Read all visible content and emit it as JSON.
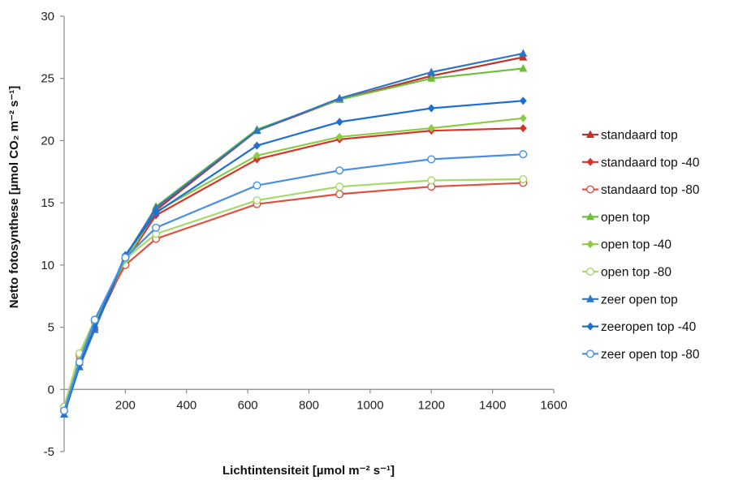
{
  "chart_data": {
    "type": "line",
    "xlabel": "Lichtintensiteit [µmol m⁻² s⁻¹]",
    "ylabel": "Netto fotosynthese [µmol CO₂ m⁻² s⁻¹]",
    "xlim": [
      0,
      1600
    ],
    "ylim": [
      -5,
      30
    ],
    "x_ticks": [
      200,
      400,
      600,
      800,
      1000,
      1200,
      1400,
      1600
    ],
    "y_ticks": [
      -5,
      0,
      5,
      10,
      15,
      20,
      25,
      30
    ],
    "x_tick_labels": [
      "200",
      "400",
      "600",
      "800",
      "1000",
      "1200",
      "1400",
      "1600"
    ],
    "y_tick_labels": [
      "-5",
      "0",
      "5",
      "10",
      "15",
      "20",
      "25",
      "30"
    ],
    "grid": false,
    "legend_position": "right",
    "x": [
      0,
      50,
      100,
      200,
      300,
      630,
      900,
      1200,
      1500
    ],
    "series": [
      {
        "name": "standaard top",
        "color": "#c0302b",
        "marker": "triangle",
        "values": [
          -1.6,
          2.2,
          5.0,
          10.2,
          14.4,
          20.8,
          23.3,
          25.2,
          26.7
        ]
      },
      {
        "name": "standaard top -40",
        "color": "#d9322b",
        "marker": "diamond",
        "values": [
          -1.5,
          2.5,
          5.3,
          10.3,
          14.0,
          18.5,
          20.1,
          20.8,
          21.0
        ]
      },
      {
        "name": "standaard top -80",
        "color": "#e0503f",
        "marker": "circle",
        "values": [
          -1.4,
          2.8,
          5.5,
          10.0,
          12.1,
          14.9,
          15.7,
          16.3,
          16.6
        ]
      },
      {
        "name": "open top",
        "color": "#6cbf3b",
        "marker": "triangle",
        "values": [
          -1.6,
          2.4,
          5.1,
          10.5,
          14.7,
          20.9,
          23.3,
          25.0,
          25.8
        ]
      },
      {
        "name": "open top -40",
        "color": "#8ccc44",
        "marker": "diamond",
        "values": [
          -1.5,
          2.7,
          5.3,
          10.4,
          14.3,
          18.8,
          20.3,
          21.0,
          21.8
        ]
      },
      {
        "name": "open top -80",
        "color": "#a8d86a",
        "marker": "circle",
        "values": [
          -1.4,
          2.9,
          5.6,
          10.5,
          12.5,
          15.2,
          16.3,
          16.8,
          16.9
        ]
      },
      {
        "name": "zeer open top",
        "color": "#2e75c8",
        "marker": "triangle",
        "values": [
          -2.0,
          1.8,
          4.8,
          10.7,
          14.6,
          20.8,
          23.4,
          25.5,
          27.0
        ]
      },
      {
        "name": "zeeropen top -40",
        "color": "#1f6fd0",
        "marker": "diamond",
        "values": [
          -1.8,
          2.0,
          5.0,
          10.8,
          14.2,
          19.6,
          21.5,
          22.6,
          23.2
        ]
      },
      {
        "name": "zeer open top -80",
        "color": "#4a8fe0",
        "marker": "circle",
        "values": [
          -1.7,
          2.2,
          5.6,
          10.6,
          13.0,
          16.4,
          17.6,
          18.5,
          18.9
        ]
      }
    ]
  }
}
